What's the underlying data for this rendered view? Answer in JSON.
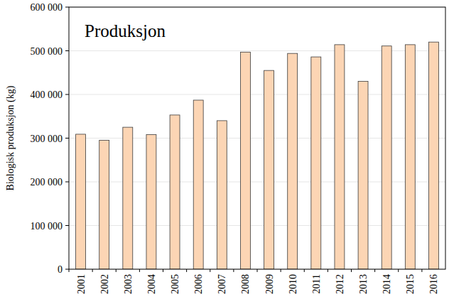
{
  "chart_data": {
    "type": "bar",
    "title": "Produksjon",
    "y_label": "Biologisk produksjon (kg)",
    "categories": [
      "2001",
      "2002",
      "2003",
      "2004",
      "2005",
      "2006",
      "2007",
      "2008",
      "2009",
      "2010",
      "2011",
      "2012",
      "2013",
      "2014",
      "2015",
      "2016"
    ],
    "values": [
      309000,
      295000,
      325000,
      308000,
      353000,
      387000,
      340000,
      497000,
      455000,
      494000,
      486000,
      514000,
      430000,
      511000,
      514000,
      520000
    ],
    "color": "#fcd5b4",
    "ylim": [
      0,
      600000
    ],
    "yticks": [
      0,
      {
        "value": 100000,
        "label": "100 000"
      },
      {
        "value": 200000,
        "label": "200 000"
      },
      {
        "value": 300000,
        "label": "300 000"
      },
      {
        "value": 400000,
        "label": "400 000"
      },
      {
        "value": 500000,
        "label": "500 000"
      },
      {
        "value": 600000,
        "label": "600 000"
      }
    ],
    "grid": true
  }
}
